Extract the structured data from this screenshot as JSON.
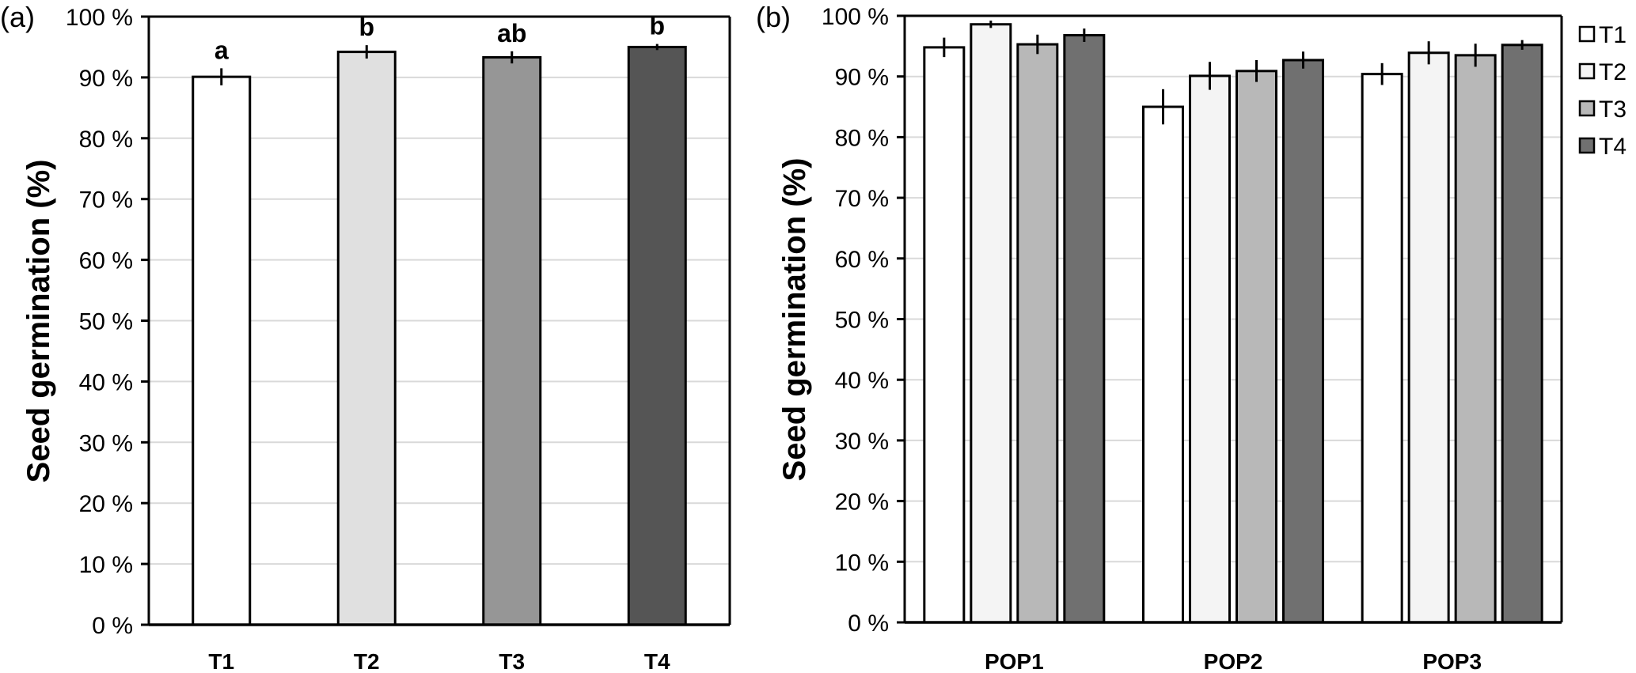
{
  "chart_data": [
    {
      "panel": "(a)",
      "type": "bar",
      "title": "",
      "xlabel": "",
      "ylabel": "Seed germination (%)",
      "ylim": [
        0,
        100
      ],
      "yticks": [
        "0 %",
        "10 %",
        "20 %",
        "30 %",
        "40 %",
        "50 %",
        "60 %",
        "70 %",
        "80 %",
        "90 %",
        "100 %"
      ],
      "grid": true,
      "categories": [
        "T1",
        "T2",
        "T3",
        "T4"
      ],
      "values": [
        90.1,
        94.2,
        93.3,
        95.0
      ],
      "errors": [
        1.4,
        1.1,
        1.0,
        0.5
      ],
      "significance_letters": [
        "a",
        "b",
        "ab",
        "b"
      ],
      "colors": [
        "#ffffff",
        "#e0e0e0",
        "#969696",
        "#555555"
      ]
    },
    {
      "panel": "(b)",
      "type": "bar",
      "title": "",
      "xlabel": "",
      "ylabel": "Seed germination (%)",
      "ylim": [
        0,
        100
      ],
      "yticks": [
        "0 %",
        "10 %",
        "20 %",
        "30 %",
        "40 %",
        "50 %",
        "60 %",
        "70 %",
        "80 %",
        "90 %",
        "100 %"
      ],
      "grid": true,
      "categories": [
        "POP1",
        "POP2",
        "POP3"
      ],
      "series": [
        {
          "name": "T1",
          "color": "#ffffff",
          "values": [
            94.8,
            85.0,
            90.4
          ],
          "errors": [
            1.6,
            2.9,
            1.8
          ]
        },
        {
          "name": "T2",
          "color": "#f4f4f4",
          "values": [
            98.6,
            90.1,
            93.9
          ],
          "errors": [
            0.6,
            2.3,
            1.9
          ]
        },
        {
          "name": "T3",
          "color": "#b8b8b8",
          "values": [
            95.3,
            90.9,
            93.5
          ],
          "errors": [
            1.6,
            1.8,
            1.9
          ]
        },
        {
          "name": "T4",
          "color": "#707070",
          "values": [
            96.8,
            92.7,
            95.2
          ],
          "errors": [
            1.1,
            1.4,
            0.8
          ]
        }
      ],
      "legend": {
        "position": "top-right-outside",
        "entries": [
          "T1",
          "T2",
          "T3",
          "T4"
        ]
      }
    }
  ]
}
